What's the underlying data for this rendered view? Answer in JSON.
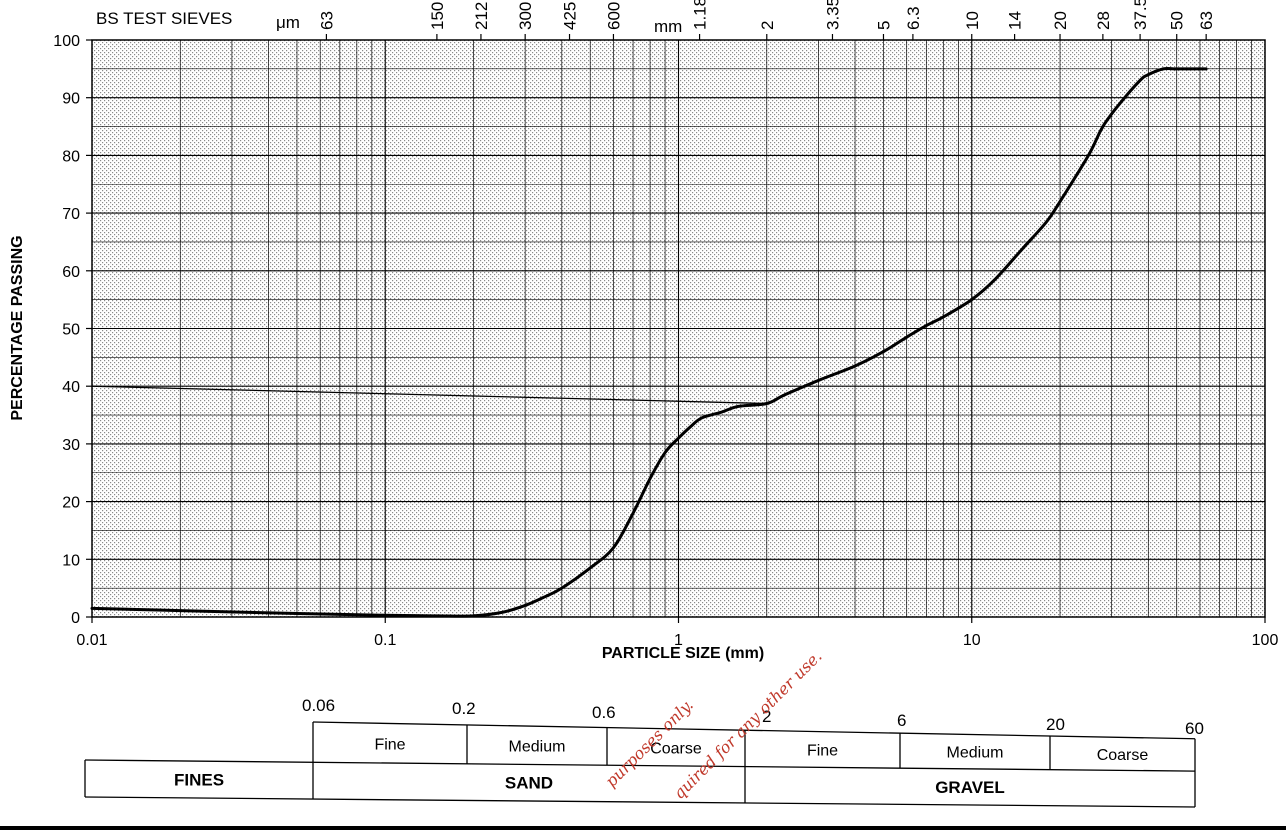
{
  "chart_data": {
    "type": "line",
    "title": "",
    "xlabel": "PARTICLE SIZE (mm)",
    "ylabel": "PERCENTAGE PASSING",
    "x_scale": "log",
    "xlim": [
      0.01,
      100
    ],
    "ylim": [
      0,
      100
    ],
    "grid": true,
    "x_ticks": [
      {
        "value": 0.01,
        "label": "0.01"
      },
      {
        "value": 0.1,
        "label": "0.1"
      },
      {
        "value": 1,
        "label": "1"
      },
      {
        "value": 10,
        "label": "10"
      },
      {
        "value": 100,
        "label": "100"
      }
    ],
    "y_ticks": [
      {
        "value": 0,
        "label": "0"
      },
      {
        "value": 10,
        "label": "10"
      },
      {
        "value": 20,
        "label": "20"
      },
      {
        "value": 30,
        "label": "30"
      },
      {
        "value": 40,
        "label": "40"
      },
      {
        "value": 50,
        "label": "50"
      },
      {
        "value": 60,
        "label": "60"
      },
      {
        "value": 70,
        "label": "70"
      },
      {
        "value": 80,
        "label": "80"
      },
      {
        "value": 90,
        "label": "90"
      },
      {
        "value": 100,
        "label": "100"
      }
    ],
    "sieve_header": "BS TEST SIEVES",
    "sieve_unit_um": "μm",
    "sieve_unit_mm": "mm",
    "sieves": [
      {
        "size_mm": 0.063,
        "label": "63"
      },
      {
        "size_mm": 0.15,
        "label": "150"
      },
      {
        "size_mm": 0.212,
        "label": "212"
      },
      {
        "size_mm": 0.3,
        "label": "300"
      },
      {
        "size_mm": 0.425,
        "label": "425"
      },
      {
        "size_mm": 0.6,
        "label": "600"
      },
      {
        "size_mm": 1.18,
        "label": "1.18"
      },
      {
        "size_mm": 2,
        "label": "2"
      },
      {
        "size_mm": 3.35,
        "label": "3.35"
      },
      {
        "size_mm": 5,
        "label": "5"
      },
      {
        "size_mm": 6.3,
        "label": "6.3"
      },
      {
        "size_mm": 10,
        "label": "10"
      },
      {
        "size_mm": 14,
        "label": "14"
      },
      {
        "size_mm": 20,
        "label": "20"
      },
      {
        "size_mm": 28,
        "label": "28"
      },
      {
        "size_mm": 37.5,
        "label": "37.5"
      },
      {
        "size_mm": 50,
        "label": "50"
      },
      {
        "size_mm": 63,
        "label": "63"
      }
    ],
    "series": [
      {
        "x": [
          0.01,
          0.02,
          0.05,
          0.1,
          0.15,
          0.2,
          0.25,
          0.3,
          0.35,
          0.4,
          0.5,
          0.6,
          0.7,
          0.8,
          0.9,
          1.0,
          1.1,
          1.2,
          1.4,
          1.6,
          2.0,
          2.3,
          3.0,
          4.0,
          5.0,
          6.0,
          7.0,
          8.0,
          10.0,
          12.0,
          15.0,
          18.0,
          20.0,
          25.0,
          28.0,
          32.0,
          37.5,
          40.0,
          45.0,
          50.0,
          63.0
        ],
        "y": [
          1.5,
          1.1,
          0.6,
          0.3,
          0.2,
          0.2,
          0.8,
          2.0,
          3.5,
          5.0,
          8.5,
          12.0,
          18.0,
          24.0,
          28.5,
          31.0,
          33.0,
          34.5,
          35.5,
          36.5,
          37.0,
          38.5,
          41.0,
          43.5,
          46.0,
          48.5,
          50.5,
          52.0,
          55.0,
          58.5,
          64.0,
          68.5,
          72.0,
          80.0,
          85.0,
          89.0,
          93.0,
          94.0,
          95.0,
          95.0,
          95.0
        ]
      }
    ],
    "reference_line": {
      "from_x": 0.01,
      "to_x": 2,
      "y_start": 40,
      "y_end": 37
    },
    "classification": {
      "boundaries": [
        "0.06",
        "0.2",
        "0.6",
        "2",
        "6",
        "20",
        "60"
      ],
      "sub": [
        "Fine",
        "Medium",
        "Coarse",
        "Fine",
        "Medium",
        "Coarse"
      ],
      "major": [
        "FINES",
        "SAND",
        "GRAVEL"
      ]
    },
    "watermark": [
      "purposes only.",
      "quired for any other use."
    ]
  }
}
